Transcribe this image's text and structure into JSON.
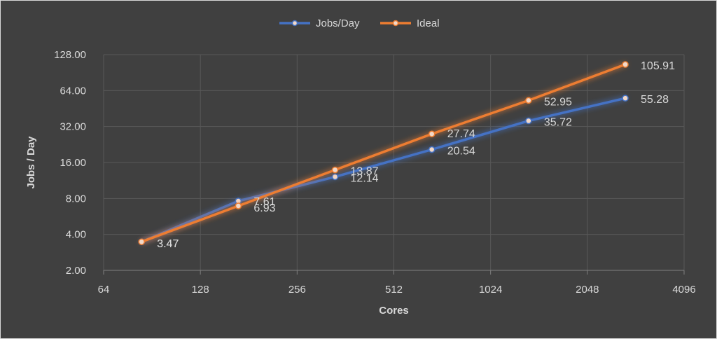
{
  "chart_data": {
    "type": "line",
    "xlabel": "Cores",
    "ylabel": "Jobs / Day",
    "x_scale": "log2",
    "y_scale": "log2",
    "xlim": [
      64,
      4096
    ],
    "ylim": [
      2,
      128
    ],
    "x_ticks": [
      "64",
      "128",
      "256",
      "512",
      "1024",
      "2048",
      "4096"
    ],
    "y_ticks": [
      "2.00",
      "4.00",
      "8.00",
      "16.00",
      "32.00",
      "64.00",
      "128.00"
    ],
    "grid": true,
    "legend_position": "top",
    "series": [
      {
        "name": "Jobs/Day",
        "color": "#4472c4",
        "x": [
          84,
          168,
          336,
          672,
          1344,
          2688
        ],
        "values": [
          3.47,
          7.61,
          12.14,
          20.54,
          35.72,
          55.28
        ],
        "labels": [
          "3.47",
          "7.61",
          "12.14",
          "20.54",
          "35.72",
          "55.28"
        ]
      },
      {
        "name": "Ideal",
        "color": "#ed7d31",
        "x": [
          84,
          168,
          336,
          672,
          1344,
          2688
        ],
        "values": [
          3.47,
          6.93,
          13.87,
          27.74,
          52.95,
          105.91
        ],
        "labels": [
          "3.47",
          "6.93",
          "13.87",
          "27.74",
          "52.95",
          "105.91"
        ]
      }
    ]
  }
}
